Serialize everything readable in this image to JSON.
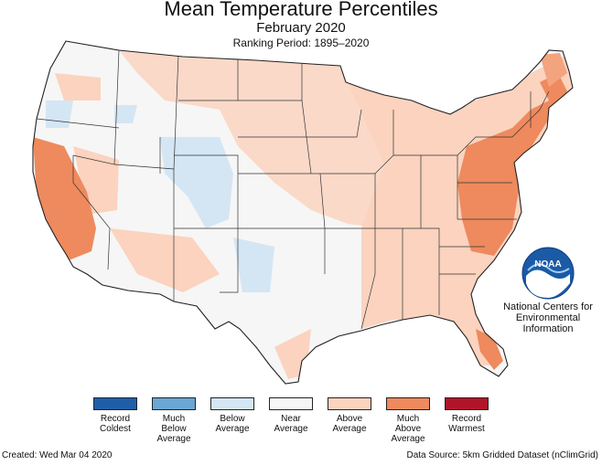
{
  "header": {
    "title": "Mean Temperature Percentiles",
    "subtitle": "February 2020",
    "period": "Ranking Period: 1895–2020"
  },
  "logo": {
    "text": "NOAA",
    "org_lines": [
      "National Centers for",
      "Environmental",
      "Information"
    ]
  },
  "legend": [
    {
      "lines": [
        "Record",
        "Coldest"
      ],
      "color": "#1f5fa8"
    },
    {
      "lines": [
        "Much",
        "Below",
        "Average"
      ],
      "color": "#6aa7d4"
    },
    {
      "lines": [
        "Below",
        "Average"
      ],
      "color": "#d4e6f4"
    },
    {
      "lines": [
        "Near",
        "Average"
      ],
      "color": "#f6f6f6"
    },
    {
      "lines": [
        "Above",
        "Average"
      ],
      "color": "#fbd3bf"
    },
    {
      "lines": [
        "Much",
        "Above",
        "Average"
      ],
      "color": "#ee8a5d"
    },
    {
      "lines": [
        "Record",
        "Warmest"
      ],
      "color": "#b1152a"
    }
  ],
  "footer": {
    "created": "Created: Wed Mar 04 2020",
    "source": "Data Source: 5km Gridded Dataset (nClimGrid)"
  }
}
